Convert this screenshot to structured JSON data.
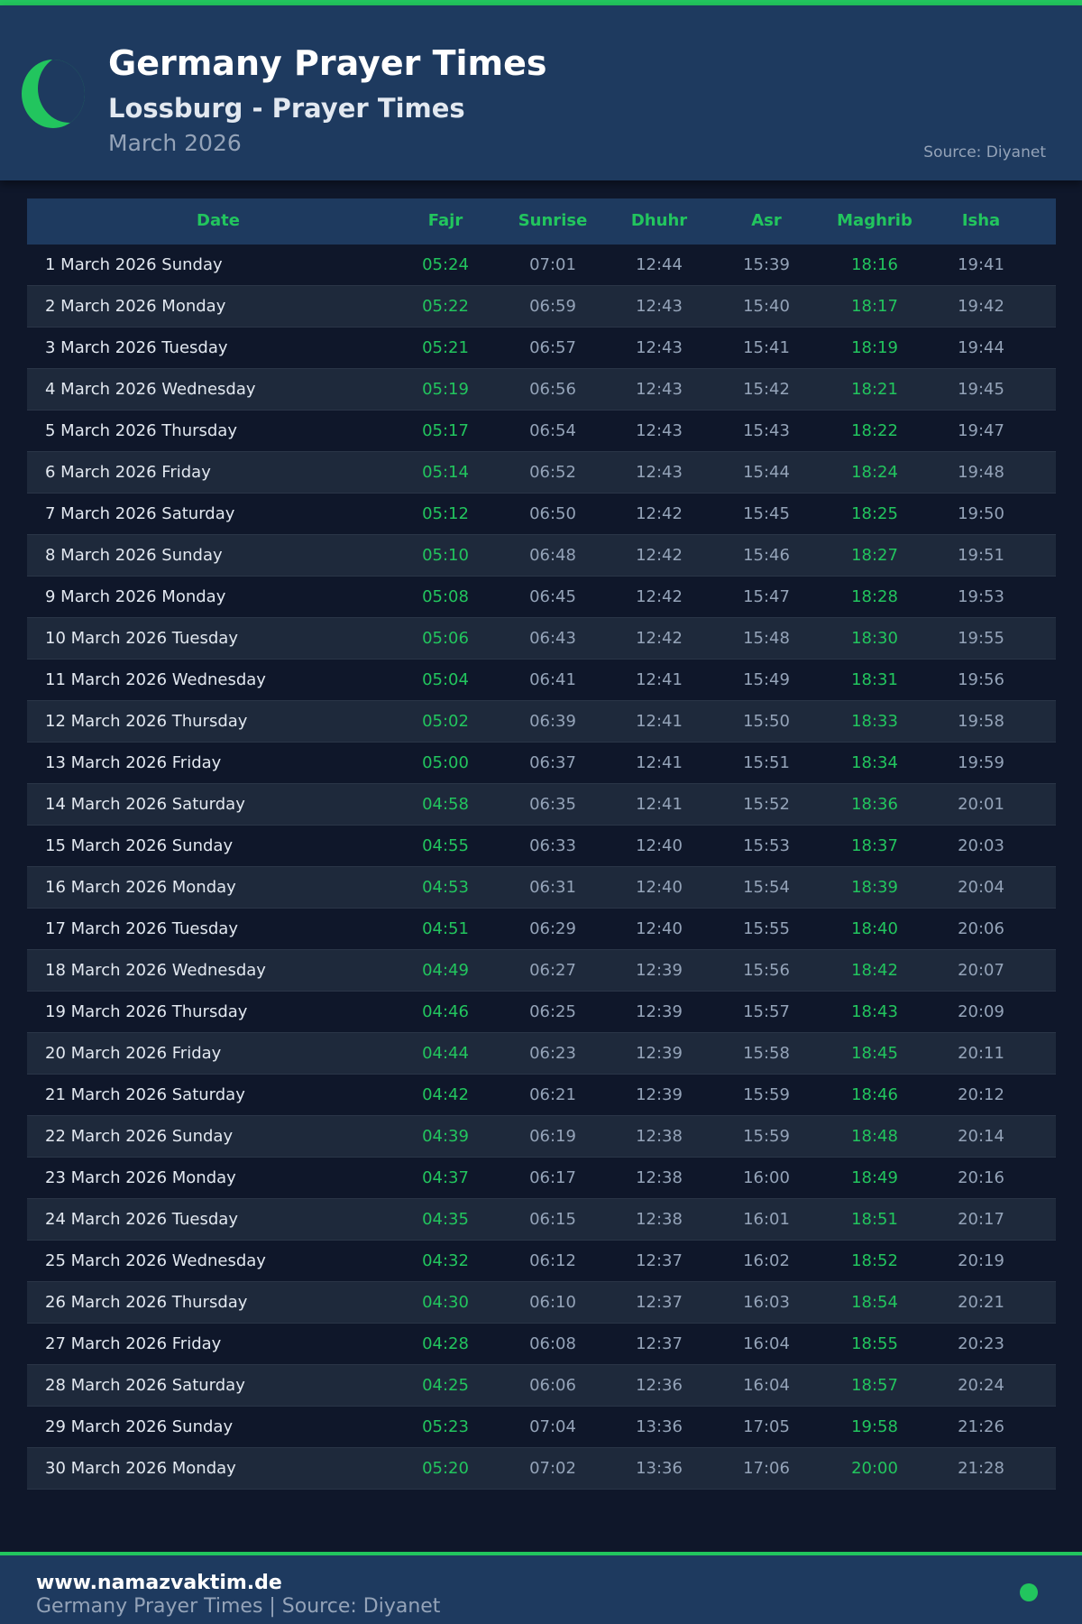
{
  "colors": {
    "accent": "#22c55e",
    "header_bg": "#1e3a5f",
    "page_bg": "#0f172a"
  },
  "header": {
    "icon": "crescent-moon-icon",
    "title": "Germany Prayer Times",
    "subtitle": "Lossburg - Prayer Times",
    "month": "March 2026",
    "source": "Source: Diyanet"
  },
  "table": {
    "columns": [
      "Date",
      "Fajr",
      "Sunrise",
      "Dhuhr",
      "Asr",
      "Maghrib",
      "Isha"
    ],
    "rows": [
      [
        "1 March 2026 Sunday",
        "05:24",
        "07:01",
        "12:44",
        "15:39",
        "18:16",
        "19:41"
      ],
      [
        "2 March 2026 Monday",
        "05:22",
        "06:59",
        "12:43",
        "15:40",
        "18:17",
        "19:42"
      ],
      [
        "3 March 2026 Tuesday",
        "05:21",
        "06:57",
        "12:43",
        "15:41",
        "18:19",
        "19:44"
      ],
      [
        "4 March 2026 Wednesday",
        "05:19",
        "06:56",
        "12:43",
        "15:42",
        "18:21",
        "19:45"
      ],
      [
        "5 March 2026 Thursday",
        "05:17",
        "06:54",
        "12:43",
        "15:43",
        "18:22",
        "19:47"
      ],
      [
        "6 March 2026 Friday",
        "05:14",
        "06:52",
        "12:43",
        "15:44",
        "18:24",
        "19:48"
      ],
      [
        "7 March 2026 Saturday",
        "05:12",
        "06:50",
        "12:42",
        "15:45",
        "18:25",
        "19:50"
      ],
      [
        "8 March 2026 Sunday",
        "05:10",
        "06:48",
        "12:42",
        "15:46",
        "18:27",
        "19:51"
      ],
      [
        "9 March 2026 Monday",
        "05:08",
        "06:45",
        "12:42",
        "15:47",
        "18:28",
        "19:53"
      ],
      [
        "10 March 2026 Tuesday",
        "05:06",
        "06:43",
        "12:42",
        "15:48",
        "18:30",
        "19:55"
      ],
      [
        "11 March 2026 Wednesday",
        "05:04",
        "06:41",
        "12:41",
        "15:49",
        "18:31",
        "19:56"
      ],
      [
        "12 March 2026 Thursday",
        "05:02",
        "06:39",
        "12:41",
        "15:50",
        "18:33",
        "19:58"
      ],
      [
        "13 March 2026 Friday",
        "05:00",
        "06:37",
        "12:41",
        "15:51",
        "18:34",
        "19:59"
      ],
      [
        "14 March 2026 Saturday",
        "04:58",
        "06:35",
        "12:41",
        "15:52",
        "18:36",
        "20:01"
      ],
      [
        "15 March 2026 Sunday",
        "04:55",
        "06:33",
        "12:40",
        "15:53",
        "18:37",
        "20:03"
      ],
      [
        "16 March 2026 Monday",
        "04:53",
        "06:31",
        "12:40",
        "15:54",
        "18:39",
        "20:04"
      ],
      [
        "17 March 2026 Tuesday",
        "04:51",
        "06:29",
        "12:40",
        "15:55",
        "18:40",
        "20:06"
      ],
      [
        "18 March 2026 Wednesday",
        "04:49",
        "06:27",
        "12:39",
        "15:56",
        "18:42",
        "20:07"
      ],
      [
        "19 March 2026 Thursday",
        "04:46",
        "06:25",
        "12:39",
        "15:57",
        "18:43",
        "20:09"
      ],
      [
        "20 March 2026 Friday",
        "04:44",
        "06:23",
        "12:39",
        "15:58",
        "18:45",
        "20:11"
      ],
      [
        "21 March 2026 Saturday",
        "04:42",
        "06:21",
        "12:39",
        "15:59",
        "18:46",
        "20:12"
      ],
      [
        "22 March 2026 Sunday",
        "04:39",
        "06:19",
        "12:38",
        "15:59",
        "18:48",
        "20:14"
      ],
      [
        "23 March 2026 Monday",
        "04:37",
        "06:17",
        "12:38",
        "16:00",
        "18:49",
        "20:16"
      ],
      [
        "24 March 2026 Tuesday",
        "04:35",
        "06:15",
        "12:38",
        "16:01",
        "18:51",
        "20:17"
      ],
      [
        "25 March 2026 Wednesday",
        "04:32",
        "06:12",
        "12:37",
        "16:02",
        "18:52",
        "20:19"
      ],
      [
        "26 March 2026 Thursday",
        "04:30",
        "06:10",
        "12:37",
        "16:03",
        "18:54",
        "20:21"
      ],
      [
        "27 March 2026 Friday",
        "04:28",
        "06:08",
        "12:37",
        "16:04",
        "18:55",
        "20:23"
      ],
      [
        "28 March 2026 Saturday",
        "04:25",
        "06:06",
        "12:36",
        "16:04",
        "18:57",
        "20:24"
      ],
      [
        "29 March 2026 Sunday",
        "05:23",
        "07:04",
        "13:36",
        "17:05",
        "19:58",
        "21:26"
      ],
      [
        "30 March 2026 Monday",
        "05:20",
        "07:02",
        "13:36",
        "17:06",
        "20:00",
        "21:28"
      ]
    ]
  },
  "footer": {
    "site": "www.namazvaktim.de",
    "description": "Germany Prayer Times | Source: Diyanet"
  }
}
